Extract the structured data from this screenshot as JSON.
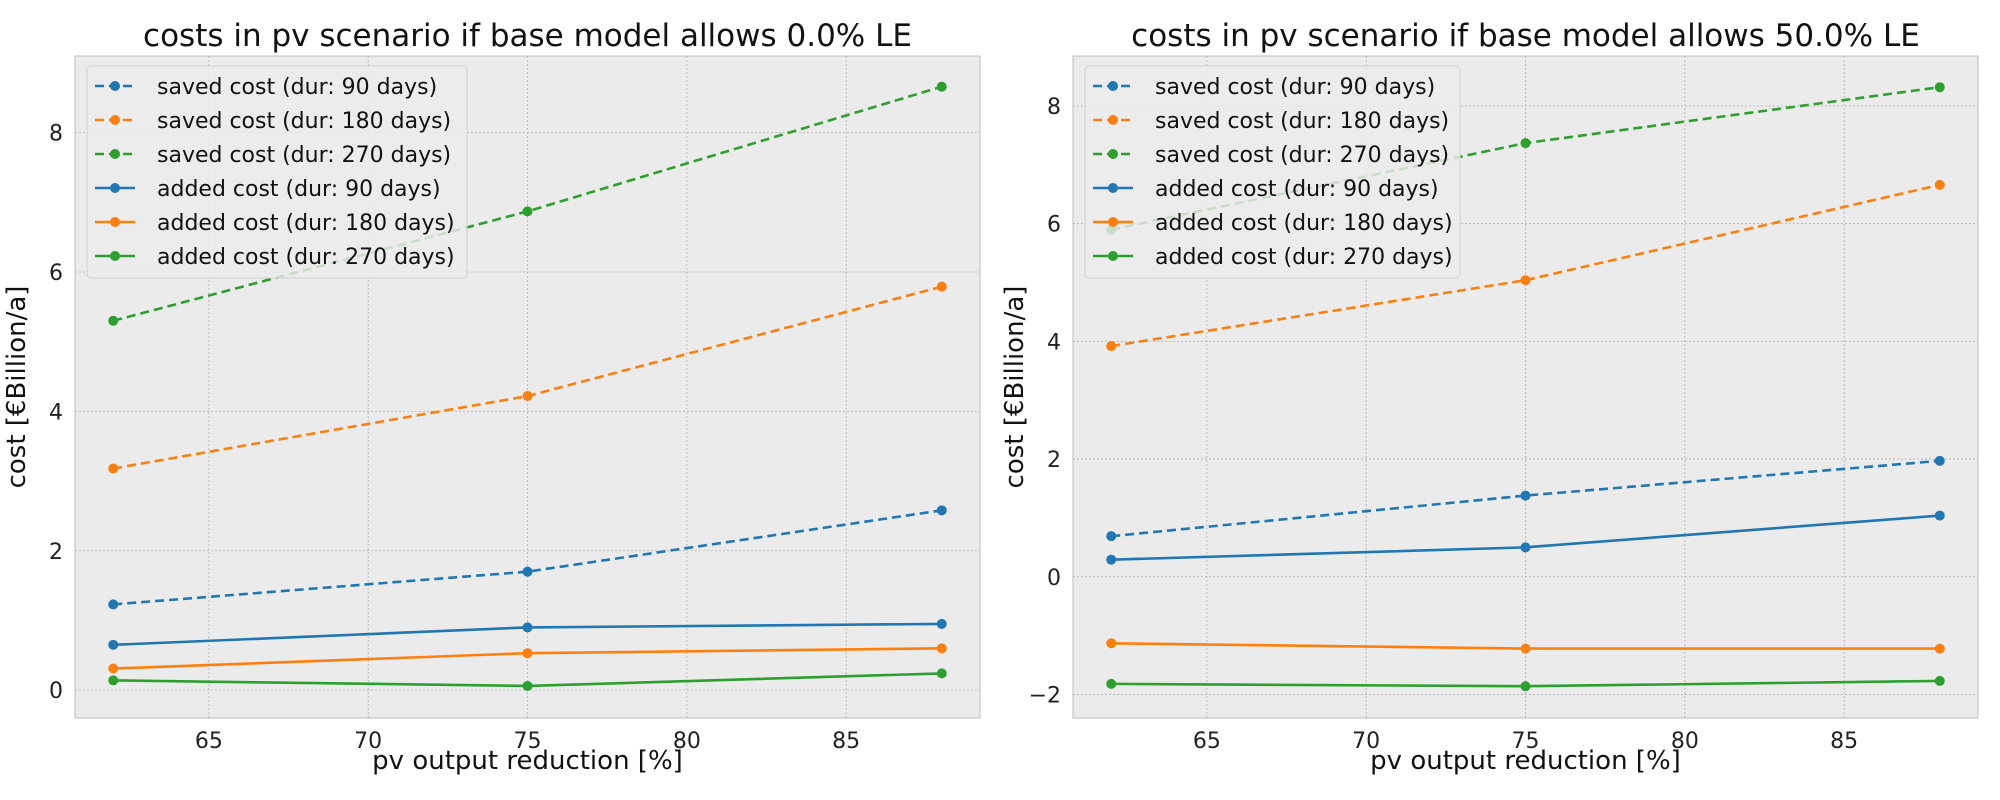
{
  "chart_data": [
    {
      "type": "line",
      "title": "costs in pv scenario if base model allows 0.0% LE",
      "xlabel": "pv output reduction [%]",
      "ylabel": "cost [€Billion/a]",
      "x": [
        62,
        75,
        88
      ],
      "xlim": [
        60.8,
        89.2
      ],
      "ylim": [
        -0.4,
        9.1
      ],
      "xticks": [
        65,
        70,
        75,
        80,
        85
      ],
      "yticks": [
        0,
        2,
        4,
        6,
        8
      ],
      "grid": true,
      "legend_position": "top-left",
      "series": [
        {
          "name": "saved cost (dur: 90 days)",
          "values": [
            1.23,
            1.7,
            2.58
          ],
          "color": "#1f77b4",
          "style": "dashed"
        },
        {
          "name": "saved cost (dur: 180 days)",
          "values": [
            3.18,
            4.22,
            5.79
          ],
          "color": "#ff7f0e",
          "style": "dashed"
        },
        {
          "name": "saved cost (dur: 270 days)",
          "values": [
            5.3,
            6.87,
            8.66
          ],
          "color": "#2ca02c",
          "style": "dashed"
        },
        {
          "name": "added cost (dur: 90 days)",
          "values": [
            0.65,
            0.9,
            0.95
          ],
          "color": "#1f77b4",
          "style": "solid"
        },
        {
          "name": "added cost (dur: 180 days)",
          "values": [
            0.31,
            0.53,
            0.6
          ],
          "color": "#ff7f0e",
          "style": "solid"
        },
        {
          "name": "added cost (dur: 270 days)",
          "values": [
            0.14,
            0.06,
            0.24
          ],
          "color": "#2ca02c",
          "style": "solid"
        }
      ]
    },
    {
      "type": "line",
      "title": "costs in pv scenario if base model allows 50.0% LE",
      "xlabel": "pv output reduction [%]",
      "ylabel": "cost [€Billion/a]",
      "x": [
        62,
        75,
        88
      ],
      "xlim": [
        60.8,
        89.2
      ],
      "ylim": [
        -2.4,
        8.85
      ],
      "xticks": [
        65,
        70,
        75,
        80,
        85
      ],
      "yticks": [
        -2,
        0,
        2,
        4,
        6,
        8
      ],
      "grid": true,
      "legend_position": "top-left",
      "series": [
        {
          "name": "saved cost (dur: 90 days)",
          "values": [
            0.69,
            1.38,
            1.97
          ],
          "color": "#1f77b4",
          "style": "dashed"
        },
        {
          "name": "saved cost (dur: 180 days)",
          "values": [
            3.92,
            5.04,
            6.66
          ],
          "color": "#ff7f0e",
          "style": "dashed"
        },
        {
          "name": "saved cost (dur: 270 days)",
          "values": [
            5.9,
            7.37,
            8.32
          ],
          "color": "#2ca02c",
          "style": "dashed"
        },
        {
          "name": "added cost (dur: 90 days)",
          "values": [
            0.29,
            0.5,
            1.04
          ],
          "color": "#1f77b4",
          "style": "solid"
        },
        {
          "name": "added cost (dur: 180 days)",
          "values": [
            -1.13,
            -1.22,
            -1.22
          ],
          "color": "#ff7f0e",
          "style": "solid"
        },
        {
          "name": "added cost (dur: 270 days)",
          "values": [
            -1.82,
            -1.86,
            -1.77
          ],
          "color": "#2ca02c",
          "style": "solid"
        }
      ]
    }
  ]
}
